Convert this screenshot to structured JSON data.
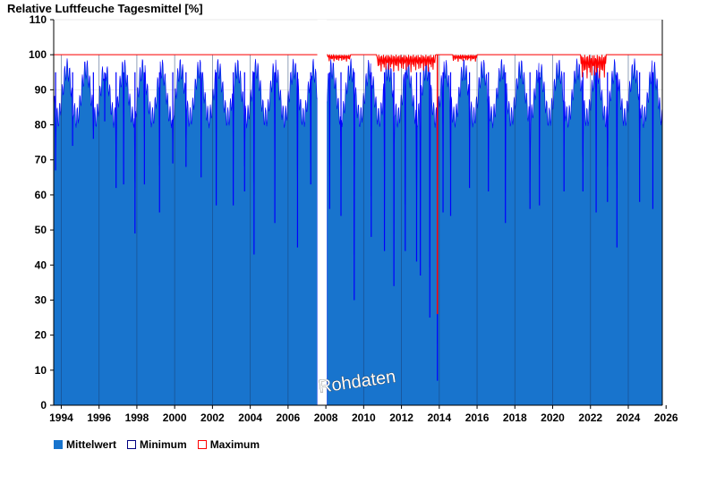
{
  "chart_data": {
    "type": "area",
    "title": "Relative Luftfeuche Tagesmittel [%]",
    "ylim": [
      0,
      110
    ],
    "yticks": [
      0,
      10,
      20,
      30,
      40,
      50,
      60,
      70,
      80,
      90,
      100,
      110
    ],
    "xlim": [
      1993.6,
      2025.8
    ],
    "xticks": [
      "1994",
      "1996",
      "1998",
      "2000",
      "2002",
      "2004",
      "2006",
      "2008",
      "2010",
      "2012",
      "2014",
      "2016",
      "2018",
      "2020",
      "2022",
      "2024",
      "2026"
    ],
    "grid": true,
    "gap": [
      2007.55,
      2008.05
    ],
    "watermark": "Rohdaten",
    "colors": {
      "mean": "#1874cd",
      "mean_line": "#0000ff",
      "max": "#ff0000",
      "min": "#000080"
    },
    "series": [
      {
        "name": "Mittelwert",
        "mean": 89,
        "lows": [
          [
            1993.7,
            67
          ],
          [
            1994.6,
            74
          ],
          [
            1995.7,
            76
          ],
          [
            1996.3,
            81
          ],
          [
            1996.9,
            62
          ],
          [
            1997.3,
            63
          ],
          [
            1997.9,
            49
          ],
          [
            1998.4,
            63
          ],
          [
            1999.2,
            55
          ],
          [
            1999.9,
            69
          ],
          [
            2000.6,
            68
          ],
          [
            2001.4,
            65
          ],
          [
            2002.2,
            57
          ],
          [
            2003.1,
            57
          ],
          [
            2003.7,
            61
          ],
          [
            2004.2,
            43
          ],
          [
            2005.3,
            52
          ],
          [
            2006.5,
            45
          ],
          [
            2007.2,
            63
          ],
          [
            2008.2,
            56
          ],
          [
            2008.8,
            54
          ],
          [
            2009.5,
            30
          ],
          [
            2010.4,
            48
          ],
          [
            2011.1,
            44
          ],
          [
            2011.6,
            34
          ],
          [
            2012.2,
            44
          ],
          [
            2012.8,
            41
          ],
          [
            2013.0,
            37
          ],
          [
            2013.5,
            25
          ],
          [
            2013.9,
            7
          ],
          [
            2014.2,
            55
          ],
          [
            2014.6,
            54
          ],
          [
            2015.6,
            62
          ],
          [
            2016.6,
            61
          ],
          [
            2017.5,
            52
          ],
          [
            2018.8,
            56
          ],
          [
            2019.3,
            57
          ],
          [
            2020.6,
            61
          ],
          [
            2021.6,
            61
          ],
          [
            2022.3,
            55
          ],
          [
            2022.9,
            58
          ],
          [
            2023.4,
            45
          ],
          [
            2024.6,
            58
          ],
          [
            2025.3,
            56
          ]
        ]
      },
      {
        "name": "Minimum"
      },
      {
        "name": "Maximum",
        "low_segments": [
          [
            2008.1,
            2009.3,
            98
          ],
          [
            2010.7,
            2013.8,
            95
          ],
          [
            2014.7,
            2016.0,
            98
          ],
          [
            2021.5,
            2022.8,
            93
          ]
        ],
        "spike_low": [
          2013.9,
          26
        ]
      }
    ]
  },
  "legend": [
    {
      "label": "Mittelwert",
      "swatch": "#1874cd",
      "border": "#1874cd"
    },
    {
      "label": "Minimum",
      "swatch": "#ffffff",
      "border": "#000080"
    },
    {
      "label": "Maximum",
      "swatch": "#ffffff",
      "border": "#ff0000"
    }
  ]
}
